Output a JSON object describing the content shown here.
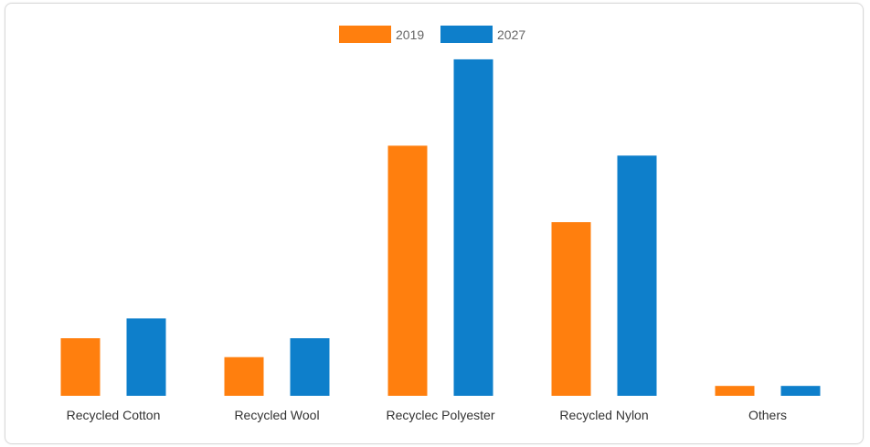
{
  "chart_data": {
    "type": "bar",
    "title": "",
    "xlabel": "",
    "ylabel": "",
    "categories": [
      "Recycled Cotton",
      "Recycled Wool",
      "Recyclec Polyester",
      "Recycled Nylon",
      "Others"
    ],
    "series": [
      {
        "name": "2019",
        "color": "#ff7f0e",
        "values": [
          64,
          43,
          278,
          193,
          11
        ]
      },
      {
        "name": "2027",
        "color": "#0e7fcb",
        "values": [
          86,
          64,
          374,
          267,
          11
        ]
      }
    ],
    "ylim": [
      0,
      380
    ],
    "grid": false,
    "y_axis_visible": false,
    "legend_position": "top-center"
  }
}
